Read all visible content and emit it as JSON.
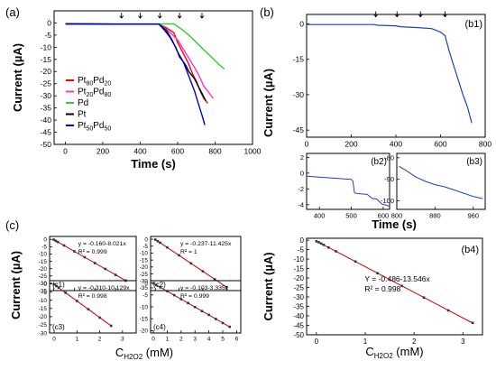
{
  "figure": {
    "panel_labels": {
      "a": "(a)",
      "b": "(b)",
      "c": "(c)"
    },
    "shared_xlabel_time": "Time (s)",
    "shared_xlabel_conc": {
      "base": "C",
      "sub": "H",
      "sub2": "2",
      "mid": "O",
      "sub3": "2",
      "unit": " (mM)"
    }
  },
  "colors": {
    "PtPd_80_20": "#ff0000",
    "PtPd_20_80": "#ff33cc",
    "Pd": "#33cc33",
    "Pt": "#000000",
    "PtPd_50_50": "#0000cc",
    "b_trace": "#1f3fbf",
    "fit_line": "#cc0000",
    "points": "#333333"
  },
  "chart_data": [
    {
      "id": "a",
      "type": "line",
      "panel_label": "(a)",
      "xlabel": "Time (s)",
      "ylabel": "Current (µA)",
      "xlim": [
        -60,
        1000
      ],
      "ylim": [
        -50,
        5
      ],
      "xticks": [
        0,
        200,
        400,
        600,
        800,
        1000
      ],
      "yticks": [
        0,
        -5,
        -10,
        -15,
        -20,
        -25,
        -30,
        -35,
        -40,
        -45,
        -50
      ],
      "arrows_x": [
        300,
        400,
        505,
        610,
        730
      ],
      "legend": [
        {
          "label": "Pt",
          "sub1": "80",
          "mid": "Pd",
          "sub2": "20",
          "color_key": "PtPd_80_20"
        },
        {
          "label": "Pt",
          "sub1": "20",
          "mid": "Pd",
          "sub2": "80",
          "color_key": "PtPd_20_80"
        },
        {
          "label": "Pd",
          "sub1": "",
          "mid": "",
          "sub2": "",
          "color_key": "Pd"
        },
        {
          "label": "Pt",
          "sub1": "",
          "mid": "",
          "sub2": "",
          "color_key": "Pt"
        },
        {
          "label": "Pt",
          "sub1": "50",
          "mid": "Pd",
          "sub2": "50",
          "color_key": "PtPd_50_50"
        }
      ],
      "series": [
        {
          "name": "Pt80Pd20",
          "color_key": "PtPd_80_20",
          "points": [
            [
              0,
              -0.4
            ],
            [
              500,
              -0.5
            ],
            [
              540,
              -2
            ],
            [
              580,
              -4
            ],
            [
              600,
              -8
            ],
            [
              620,
              -11
            ],
            [
              640,
              -14
            ],
            [
              660,
              -17
            ],
            [
              680,
              -21
            ],
            [
              700,
              -24
            ],
            [
              720,
              -28
            ],
            [
              740,
              -31
            ],
            [
              760,
              -33
            ]
          ]
        },
        {
          "name": "Pt20Pd80",
          "color_key": "PtPd_20_80",
          "points": [
            [
              0,
              -0.4
            ],
            [
              500,
              -0.5
            ],
            [
              530,
              -2
            ],
            [
              560,
              -4
            ],
            [
              600,
              -7
            ],
            [
              640,
              -12
            ],
            [
              680,
              -17
            ],
            [
              710,
              -21
            ],
            [
              740,
              -26
            ],
            [
              770,
              -29
            ],
            [
              790,
              -31
            ]
          ]
        },
        {
          "name": "Pd",
          "color_key": "Pd",
          "points": [
            [
              0,
              -0.3
            ],
            [
              580,
              -0.4
            ],
            [
              620,
              -2.5
            ],
            [
              660,
              -5
            ],
            [
              700,
              -8
            ],
            [
              740,
              -11
            ],
            [
              780,
              -14
            ],
            [
              820,
              -17
            ],
            [
              850,
              -19
            ]
          ]
        },
        {
          "name": "Pt",
          "color_key": "Pt",
          "points": [
            [
              0,
              -0.4
            ],
            [
              500,
              -0.5
            ],
            [
              530,
              -3
            ],
            [
              560,
              -6
            ],
            [
              590,
              -10
            ],
            [
              610,
              -14
            ],
            [
              640,
              -17
            ],
            [
              660,
              -20
            ],
            [
              690,
              -23
            ],
            [
              710,
              -26
            ],
            [
              730,
              -29
            ],
            [
              750,
              -32
            ]
          ]
        },
        {
          "name": "Pt50Pd50",
          "color_key": "PtPd_50_50",
          "points": [
            [
              0,
              -0.4
            ],
            [
              500,
              -0.5
            ],
            [
              540,
              -3
            ],
            [
              570,
              -7
            ],
            [
              600,
              -12
            ],
            [
              630,
              -16
            ],
            [
              650,
              -20
            ],
            [
              670,
              -24
            ],
            [
              690,
              -28
            ],
            [
              710,
              -33
            ],
            [
              730,
              -38
            ],
            [
              745,
              -42
            ]
          ]
        }
      ]
    },
    {
      "id": "b1",
      "type": "line",
      "panel_label": "(b)",
      "inner_label": "(b1)",
      "ylabel": "Current (µA)",
      "xlim": [
        0,
        800
      ],
      "ylim": [
        -48,
        4
      ],
      "xticks": [
        0,
        200,
        400,
        600,
        800
      ],
      "yticks": [
        0,
        -15,
        -30,
        -45
      ],
      "arrows_x": [
        310,
        405,
        510,
        620
      ],
      "series": [
        {
          "name": "b1",
          "color_key": "b_trace",
          "points": [
            [
              0,
              -0.3
            ],
            [
              300,
              -0.3
            ],
            [
              320,
              -0.6
            ],
            [
              400,
              -0.8
            ],
            [
              420,
              -1.2
            ],
            [
              500,
              -1.6
            ],
            [
              560,
              -2
            ],
            [
              600,
              -3.5
            ],
            [
              620,
              -5
            ],
            [
              640,
              -12
            ],
            [
              660,
              -18
            ],
            [
              680,
              -24
            ],
            [
              700,
              -30
            ],
            [
              720,
              -35
            ],
            [
              740,
              -42
            ]
          ]
        }
      ]
    },
    {
      "id": "b2",
      "type": "line",
      "inner_label": "(b2)",
      "xlim": [
        360,
        620
      ],
      "ylim": [
        -4.6,
        2.5
      ],
      "xticks": [
        400,
        500,
        600
      ],
      "yticks": [
        2,
        0,
        -2,
        -4
      ],
      "series": [
        {
          "name": "b2",
          "color_key": "b_trace",
          "points": [
            [
              360,
              -0.4
            ],
            [
              500,
              -0.8
            ],
            [
              505,
              -1.0
            ],
            [
              510,
              -2.5
            ],
            [
              520,
              -2.6
            ],
            [
              550,
              -2.7
            ],
            [
              565,
              -3.2
            ],
            [
              580,
              -3.3
            ],
            [
              595,
              -3.9
            ],
            [
              620,
              -4.2
            ]
          ]
        }
      ]
    },
    {
      "id": "b3",
      "type": "line",
      "inner_label": "(b3)",
      "xlim": [
        800,
        985
      ],
      "ylim": [
        -104,
        -78
      ],
      "xticks": [
        800,
        880,
        960
      ],
      "yticks": [
        -80,
        -90,
        -100
      ],
      "series": [
        {
          "name": "b3",
          "color_key": "b_trace",
          "points": [
            [
              805,
              -84
            ],
            [
              820,
              -86
            ],
            [
              840,
              -89
            ],
            [
              860,
              -91
            ],
            [
              880,
              -92.5
            ],
            [
              900,
              -93.5
            ],
            [
              920,
              -95
            ],
            [
              940,
              -96.5
            ],
            [
              960,
              -98
            ],
            [
              980,
              -99
            ]
          ]
        }
      ]
    },
    {
      "id": "c1",
      "type": "scatter",
      "inner_label": "(c1)",
      "equation": "y = -0.160-8.021x",
      "r2": "R² = 0.999",
      "xlim": [
        -0.2,
        4
      ],
      "ylim": [
        -35,
        2
      ],
      "xticks": [
        0,
        1,
        2,
        3,
        4
      ],
      "yticks": [
        0,
        -5,
        -10,
        -15,
        -20,
        -25,
        -30,
        -35
      ],
      "x": [
        0,
        0.1,
        0.2,
        0.5,
        1.0,
        1.5,
        2.0,
        2.5,
        3.0,
        3.5
      ],
      "y": [
        -0.2,
        -1.0,
        -1.8,
        -4.2,
        -8.2,
        -12.2,
        -16.2,
        -20.2,
        -24.3,
        -28.2
      ]
    },
    {
      "id": "c2",
      "type": "scatter",
      "inner_label": "(c2)",
      "equation": "y = -0.237-11.425x",
      "r2": "R² = 1",
      "xlim": [
        -0.2,
        3.6
      ],
      "ylim": [
        -37,
        2
      ],
      "xticks": [
        0,
        1,
        2,
        3
      ],
      "yticks": [
        0,
        -5,
        -10,
        -15,
        -20,
        -25,
        -30,
        -35
      ],
      "x": [
        0,
        0.1,
        0.2,
        0.5,
        1.0,
        1.5,
        2.0,
        2.5,
        3.0
      ],
      "y": [
        -0.3,
        -1.4,
        -2.5,
        -5.9,
        -11.6,
        -17.4,
        -23.1,
        -28.8,
        -34.5
      ]
    },
    {
      "id": "c3",
      "type": "scatter",
      "inner_label": "(c3)",
      "equation": "y = -0.310-10.129x",
      "r2": "R² = 0.998",
      "xlim": [
        -0.2,
        3.6
      ],
      "ylim": [
        -30,
        2
      ],
      "xticks": [
        0,
        1,
        2,
        3
      ],
      "yticks": [
        0,
        -5,
        -10,
        -15,
        -20,
        -25,
        -30
      ],
      "x": [
        0,
        0.1,
        0.2,
        0.5,
        1.0,
        1.5,
        2.0,
        2.5
      ],
      "y": [
        -0.3,
        -1.3,
        -2.3,
        -5.4,
        -10.4,
        -15.5,
        -20.6,
        -25.6
      ]
    },
    {
      "id": "c4",
      "type": "scatter",
      "inner_label": "(c4)",
      "equation": "y = -0.103-3.335x",
      "r2": "R² = 0.999",
      "xlim": [
        -0.2,
        6.3
      ],
      "ylim": [
        -21,
        1
      ],
      "xticks": [
        0,
        1,
        2,
        3,
        4,
        5,
        6
      ],
      "yticks": [
        0,
        -5,
        -10,
        -15,
        -20
      ],
      "x": [
        0,
        0.2,
        0.5,
        1.0,
        1.5,
        2.0,
        2.5,
        3.0,
        3.5,
        4.0,
        4.5,
        5.0,
        5.5
      ],
      "y": [
        -0.1,
        -0.8,
        -1.8,
        -3.4,
        -5.1,
        -6.8,
        -8.4,
        -10.1,
        -11.8,
        -13.4,
        -15.1,
        -16.8,
        -18.4
      ]
    },
    {
      "id": "b4",
      "type": "scatter",
      "inner_label": "(b4)",
      "equation": "Y = -0.486-13.546x",
      "r2": "R² = 0.998",
      "ylabel": "Current (µA)",
      "xlim": [
        -0.2,
        3.4
      ],
      "ylim": [
        -50,
        1
      ],
      "xticks": [
        0,
        1,
        2,
        3
      ],
      "yticks": [
        0,
        -5,
        -10,
        -15,
        -20,
        -25,
        -30,
        -35,
        -40,
        -45,
        -50
      ],
      "x": [
        0,
        0.05,
        0.1,
        0.15,
        0.25,
        0.4,
        0.8,
        1.25,
        1.75,
        2.2,
        2.7,
        3.2
      ],
      "y": [
        -0.6,
        -1.1,
        -1.8,
        -2.5,
        -3.9,
        -5.9,
        -11.3,
        -17.5,
        -24.2,
        -30.3,
        -37.1,
        -43.7
      ]
    }
  ]
}
